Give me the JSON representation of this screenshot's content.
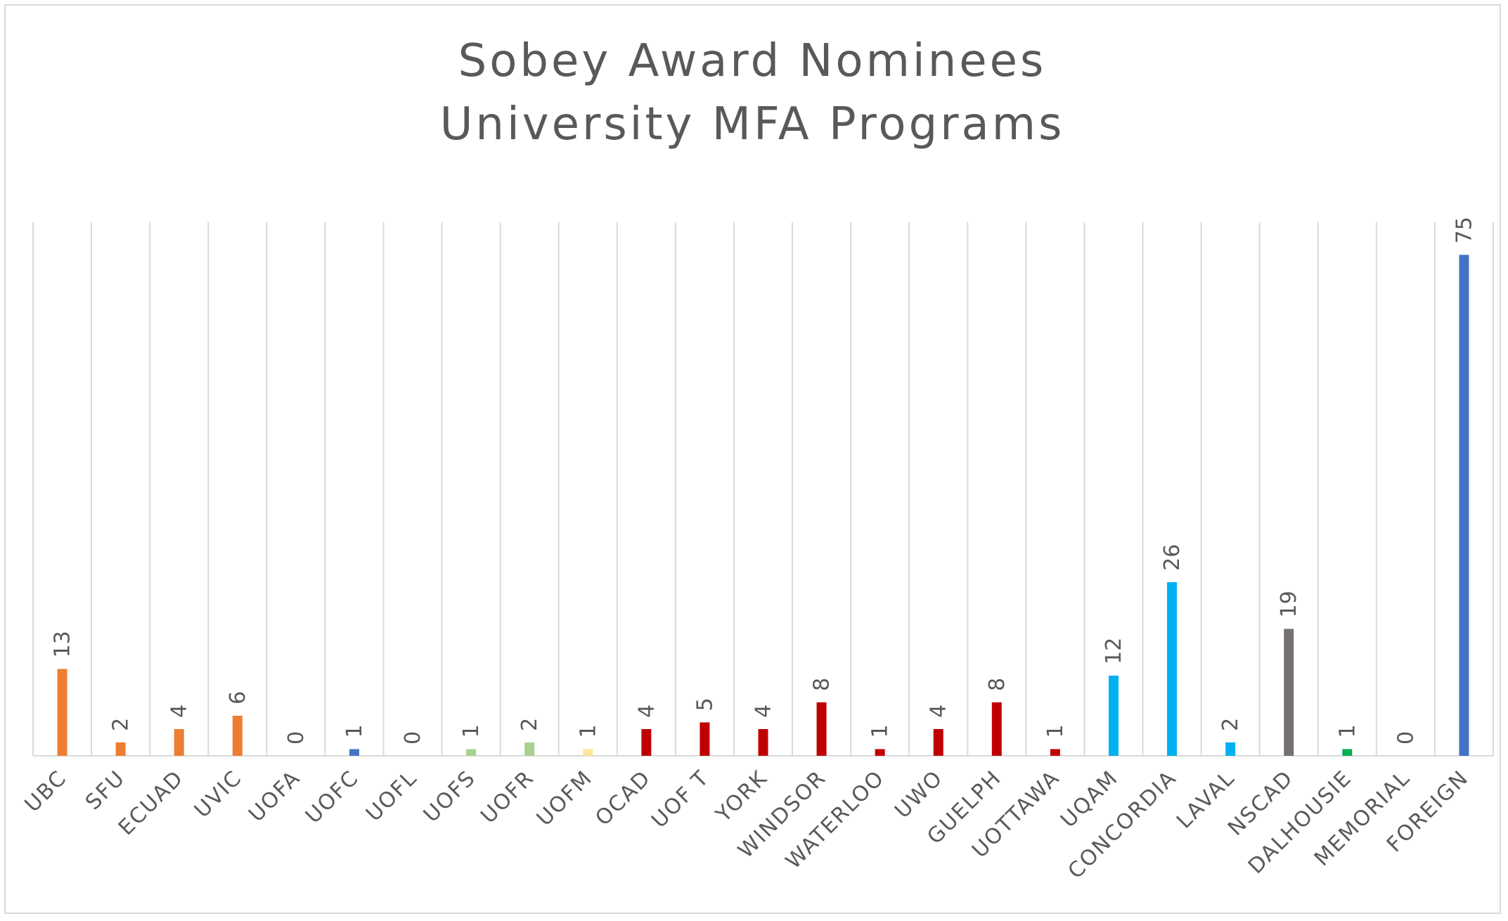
{
  "chart_data": {
    "type": "bar",
    "title": [
      "Sobey Award Nominees",
      "University MFA Programs"
    ],
    "xlabel": "",
    "ylabel": "",
    "ylim": [
      0,
      80
    ],
    "grid": "vertical",
    "legend": "none",
    "categories": [
      "UBC",
      "SFU",
      "ECUAD",
      "UVIC",
      "UOFA",
      "UOFC",
      "UOFL",
      "UOFS",
      "UOFR",
      "UOFM",
      "OCAD",
      "UOF T",
      "YORK",
      "WINDSOR",
      "WATERLOO",
      "UWO",
      "GUELPH",
      "UOTTAWA",
      "UQAM",
      "CONCORDIA",
      "LAVAL",
      "NSCAD",
      "DALHOUSIE",
      "MEMORIAL",
      "FOREIGN"
    ],
    "values": [
      13,
      2,
      4,
      6,
      0,
      1,
      0,
      1,
      2,
      1,
      4,
      5,
      4,
      8,
      1,
      4,
      8,
      1,
      12,
      26,
      2,
      19,
      1,
      0,
      75
    ],
    "data_labels": [
      "13",
      "2",
      "4",
      "6",
      "0",
      "1",
      "0",
      "1",
      "2",
      "1",
      "4",
      "5",
      "4",
      "8",
      "1",
      "4",
      "8",
      "1",
      "12",
      "26",
      "2",
      "19",
      "1",
      "0",
      "75"
    ],
    "bar_colors": [
      "#ED7D31",
      "#ED7D31",
      "#ED7D31",
      "#ED7D31",
      "#ED7D31",
      "#4472C4",
      "#A9D18E",
      "#A9D18E",
      "#A9D18E",
      "#FFE699",
      "#C00000",
      "#C00000",
      "#C00000",
      "#C00000",
      "#C00000",
      "#C00000",
      "#C00000",
      "#C00000",
      "#00B0F0",
      "#00B0F0",
      "#00B0F0",
      "#767171",
      "#00B050",
      "#00B050",
      "#4472C4"
    ]
  }
}
